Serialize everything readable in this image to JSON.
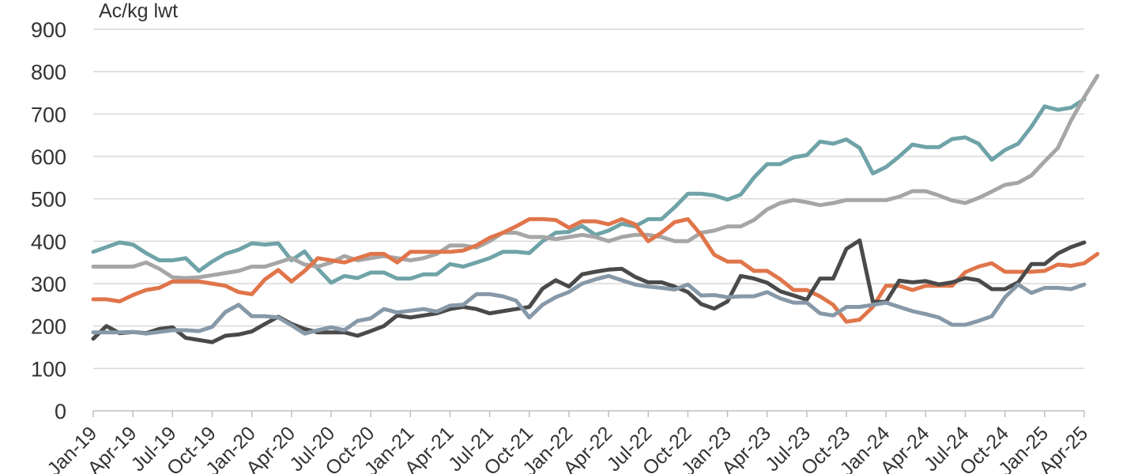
{
  "chart_data": {
    "type": "line",
    "ylabel": "Ac/kg lwt",
    "ylim": [
      0,
      900
    ],
    "yticks": [
      0,
      100,
      200,
      300,
      400,
      500,
      600,
      700,
      800,
      900
    ],
    "grid": "horizontal",
    "xtick_labels": [
      "Jan-19",
      "Apr-19",
      "Jul-19",
      "Oct-19",
      "Jan-20",
      "Apr-20",
      "Jul-20",
      "Oct-20",
      "Jan-21",
      "Apr-21",
      "Jul-21",
      "Oct-21",
      "Jan-22",
      "Apr-22",
      "Jul-22",
      "Oct-22",
      "Jan-23",
      "Apr-23",
      "Jul-23",
      "Oct-23",
      "Jan-24",
      "Apr-24",
      "Jul-24",
      "Oct-24",
      "Jan-25",
      "Apr-25"
    ],
    "series": [
      {
        "color": "#6fa3a8",
        "values": [
          375,
          386,
          397,
          392,
          372,
          355,
          355,
          360,
          330,
          352,
          370,
          380,
          395,
          392,
          395,
          355,
          376,
          335,
          302,
          318,
          313,
          326,
          326,
          312,
          312,
          322,
          322,
          346,
          340,
          350,
          360,
          375,
          375,
          372,
          400,
          420,
          422,
          436,
          415,
          425,
          441,
          435,
          452,
          452,
          480,
          512,
          512,
          508,
          498,
          510,
          550,
          582,
          582,
          598,
          603,
          635,
          630,
          640,
          620,
          560,
          575,
          600,
          628,
          622,
          622,
          641,
          645,
          630,
          592,
          615,
          630,
          670,
          718,
          710,
          715,
          735
        ]
      },
      {
        "color": "#a6a6a6",
        "values": [
          340,
          340,
          340,
          340,
          350,
          335,
          315,
          313,
          315,
          320,
          325,
          330,
          340,
          340,
          350,
          360,
          345,
          340,
          350,
          365,
          355,
          360,
          365,
          360,
          355,
          360,
          370,
          390,
          390,
          385,
          400,
          420,
          420,
          410,
          410,
          405,
          410,
          415,
          410,
          400,
          410,
          415,
          415,
          410,
          400,
          400,
          420,
          425,
          435,
          435,
          450,
          475,
          490,
          497,
          492,
          485,
          490,
          497,
          497,
          497,
          497,
          505,
          518,
          518,
          508,
          496,
          490,
          502,
          517,
          533,
          538,
          555,
          588,
          620,
          685,
          740,
          790
        ]
      },
      {
        "color": "#e0754a",
        "values": [
          263,
          263,
          258,
          273,
          285,
          290,
          305,
          305,
          305,
          300,
          295,
          280,
          275,
          310,
          332,
          305,
          330,
          360,
          355,
          350,
          360,
          370,
          370,
          350,
          375,
          375,
          375,
          375,
          378,
          390,
          408,
          420,
          435,
          452,
          452,
          450,
          432,
          447,
          447,
          440,
          452,
          440,
          400,
          420,
          445,
          452,
          415,
          368,
          352,
          352,
          330,
          330,
          310,
          285,
          285,
          270,
          250,
          210,
          215,
          245,
          295,
          295,
          285,
          295,
          295,
          295,
          327,
          340,
          348,
          328,
          328,
          328,
          330,
          345,
          342,
          348,
          370
        ]
      },
      {
        "color": "#4a4a4a",
        "values": [
          170,
          200,
          183,
          186,
          183,
          193,
          197,
          172,
          167,
          162,
          177,
          180,
          187,
          205,
          222,
          205,
          193,
          185,
          185,
          185,
          177,
          188,
          200,
          225,
          220,
          225,
          230,
          240,
          245,
          240,
          230,
          235,
          240,
          245,
          288,
          308,
          293,
          322,
          328,
          333,
          335,
          316,
          303,
          303,
          293,
          280,
          252,
          241,
          258,
          318,
          312,
          302,
          282,
          272,
          262,
          312,
          312,
          382,
          402,
          257,
          257,
          307,
          303,
          306,
          298,
          303,
          313,
          308,
          287,
          287,
          303,
          346,
          346,
          371,
          386,
          397
        ]
      },
      {
        "color": "#8799a8",
        "values": [
          185,
          185,
          185,
          186,
          182,
          186,
          190,
          190,
          188,
          198,
          233,
          250,
          223,
          223,
          220,
          202,
          182,
          190,
          197,
          190,
          212,
          218,
          240,
          232,
          236,
          240,
          234,
          248,
          250,
          275,
          275,
          270,
          260,
          220,
          250,
          268,
          280,
          300,
          310,
          318,
          308,
          298,
          293,
          290,
          286,
          298,
          272,
          273,
          268,
          270,
          270,
          280,
          265,
          255,
          255,
          230,
          225,
          245,
          245,
          250,
          255,
          245,
          235,
          228,
          220,
          203,
          203,
          212,
          223,
          268,
          298,
          278,
          290,
          290,
          287,
          298
        ]
      }
    ]
  }
}
